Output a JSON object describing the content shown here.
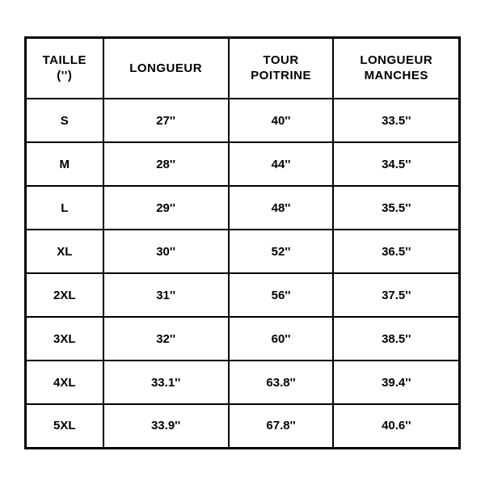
{
  "sizeTable": {
    "type": "table",
    "border_color": "#000000",
    "background_color": "#ffffff",
    "text_color": "#000000",
    "header_fontsize": 15,
    "cell_fontsize": 15,
    "font_weight": 900,
    "columns": [
      {
        "line1": "TAILLE",
        "line2": "('')"
      },
      {
        "line1": "LONGUEUR",
        "line2": ""
      },
      {
        "line1": "TOUR",
        "line2": "POITRINE"
      },
      {
        "line1": "LONGUEUR",
        "line2": "MANCHES"
      }
    ],
    "rows": [
      {
        "size": "S",
        "length": "27''",
        "chest": "40''",
        "sleeve": "33.5''"
      },
      {
        "size": "M",
        "length": "28''",
        "chest": "44''",
        "sleeve": "34.5''"
      },
      {
        "size": "L",
        "length": "29''",
        "chest": "48''",
        "sleeve": "35.5''"
      },
      {
        "size": "XL",
        "length": "30''",
        "chest": "52''",
        "sleeve": "36.5''"
      },
      {
        "size": "2XL",
        "length": "31''",
        "chest": "56''",
        "sleeve": "37.5''"
      },
      {
        "size": "3XL",
        "length": "32''",
        "chest": "60''",
        "sleeve": "38.5''"
      },
      {
        "size": "4XL",
        "length": "33.1''",
        "chest": "63.8''",
        "sleeve": "39.4''"
      },
      {
        "size": "5XL",
        "length": "33.9''",
        "chest": "67.8''",
        "sleeve": "40.6''"
      }
    ]
  }
}
